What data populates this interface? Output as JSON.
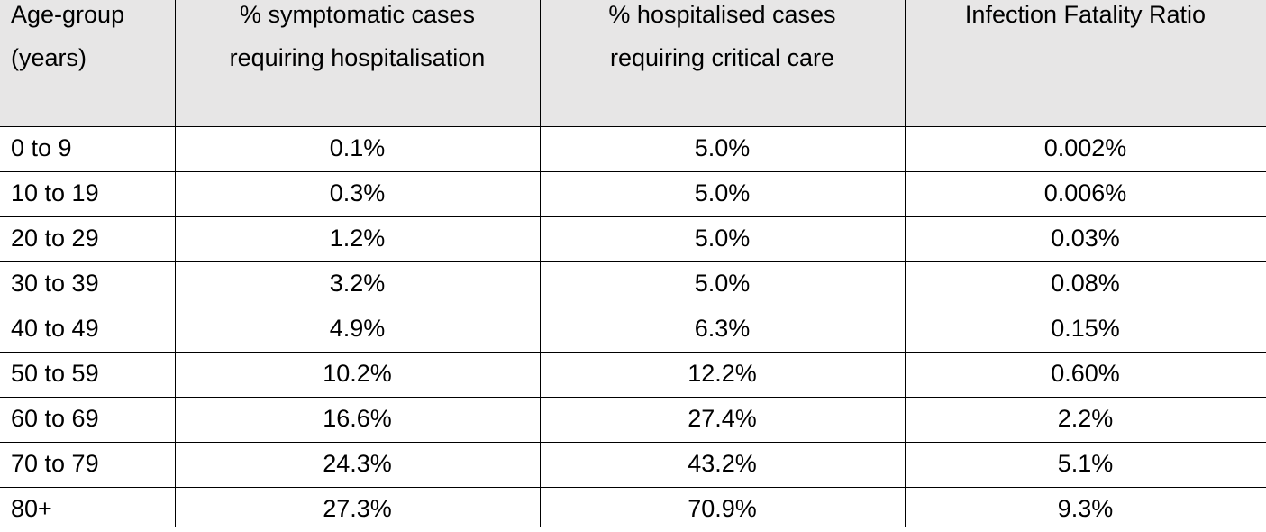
{
  "table": {
    "header": [
      [
        "Age-group",
        "(years)"
      ],
      [
        "% symptomatic cases",
        "requiring hospitalisation"
      ],
      [
        "% hospitalised cases",
        "requiring critical care"
      ],
      [
        "Infection Fatality Ratio"
      ]
    ],
    "rows": [
      [
        "0 to 9",
        "0.1%",
        "5.0%",
        "0.002%"
      ],
      [
        "10 to 19",
        "0.3%",
        "5.0%",
        "0.006%"
      ],
      [
        "20 to 29",
        "1.2%",
        "5.0%",
        "0.03%"
      ],
      [
        "30 to 39",
        "3.2%",
        "5.0%",
        "0.08%"
      ],
      [
        "40 to 49",
        "4.9%",
        "6.3%",
        "0.15%"
      ],
      [
        "50 to 59",
        "10.2%",
        "12.2%",
        "0.60%"
      ],
      [
        "60 to 69",
        "16.6%",
        "27.4%",
        "2.2%"
      ],
      [
        "70 to 79",
        "24.3%",
        "43.2%",
        "5.1%"
      ],
      [
        "80+",
        "27.3%",
        "70.9%",
        "9.3%"
      ]
    ]
  }
}
